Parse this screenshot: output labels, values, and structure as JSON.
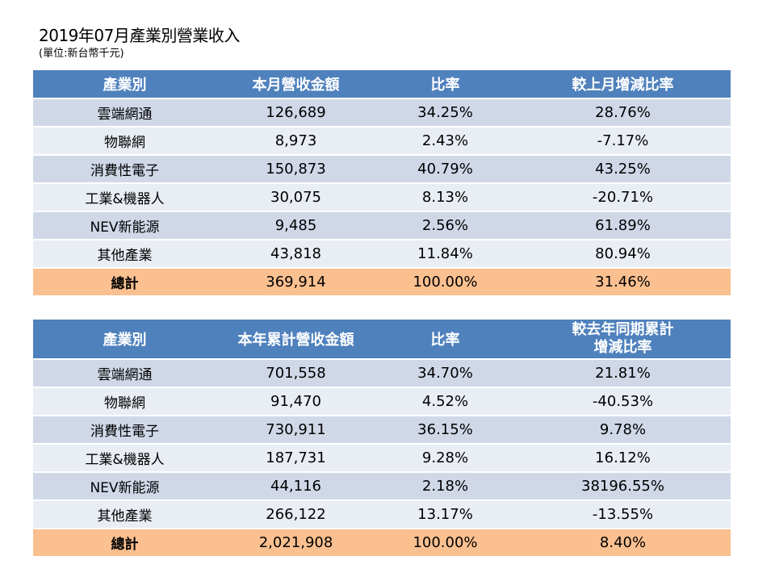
{
  "title": "2019年07月產業別營業收入",
  "unit": "(單位:新台幣千元)",
  "monthly": {
    "headers": [
      "產業別",
      "本月營收金額",
      "比率",
      "較上月增減比率"
    ],
    "rows": [
      {
        "name": "雲端網通",
        "amount": "126,689",
        "ratio": "34.25%",
        "change": "28.76%"
      },
      {
        "name": "物聯網",
        "amount": "8,973",
        "ratio": "2.43%",
        "change": "-7.17%"
      },
      {
        "name": "消費性電子",
        "amount": "150,873",
        "ratio": "40.79%",
        "change": "43.25%"
      },
      {
        "name": "工業&機器人",
        "amount": "30,075",
        "ratio": "8.13%",
        "change": "-20.71%"
      },
      {
        "name": "NEV新能源",
        "amount": "9,485",
        "ratio": "2.56%",
        "change": "61.89%"
      },
      {
        "name": "其他產業",
        "amount": "43,818",
        "ratio": "11.84%",
        "change": "80.94%"
      }
    ],
    "total": {
      "name": "總計",
      "amount": "369,914",
      "ratio": "100.00%",
      "change": "31.46%"
    }
  },
  "ytd": {
    "headers": [
      "產業別",
      "本年累計營收金額",
      "比率",
      "較去年同期累計",
      "增減比率"
    ],
    "rows": [
      {
        "name": "雲端網通",
        "amount": "701,558",
        "ratio": "34.70%",
        "change": "21.81%"
      },
      {
        "name": "物聯網",
        "amount": "91,470",
        "ratio": "4.52%",
        "change": "-40.53%"
      },
      {
        "name": "消費性電子",
        "amount": "730,911",
        "ratio": "36.15%",
        "change": "9.78%"
      },
      {
        "name": "工業&機器人",
        "amount": "187,731",
        "ratio": "9.28%",
        "change": "16.12%"
      },
      {
        "name": "NEV新能源",
        "amount": "44,116",
        "ratio": "2.18%",
        "change": "38196.55%"
      },
      {
        "name": "其他產業",
        "amount": "266,122",
        "ratio": "13.17%",
        "change": "-13.55%"
      }
    ],
    "total": {
      "name": "總計",
      "amount": "2,021,908",
      "ratio": "100.00%",
      "change": "8.40%"
    }
  }
}
